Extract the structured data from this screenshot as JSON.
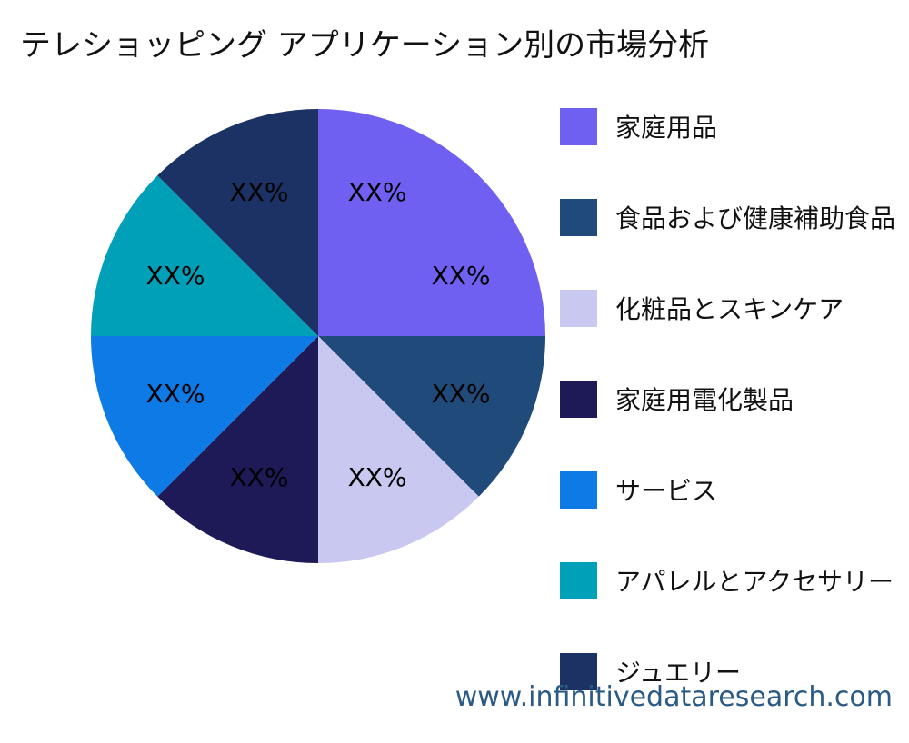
{
  "chart_data": {
    "type": "pie",
    "title": "テレショッピング アプリケーション別の市場分析",
    "slices": [
      {
        "label": "家庭用品",
        "value": 25,
        "value_label": "XX%",
        "color": "#7060f2"
      },
      {
        "label": "食品および健康補助食品",
        "value": 12.5,
        "value_label": "XX%",
        "color": "#1f4a7a"
      },
      {
        "label": "化粧品とスキンケア",
        "value": 12.5,
        "value_label": "XX%",
        "color": "#c8c8f0"
      },
      {
        "label": "家庭用電化製品",
        "value": 12.5,
        "value_label": "XX%",
        "color": "#1e1a58"
      },
      {
        "label": "サービス",
        "value": 12.5,
        "value_label": "XX%",
        "color": "#0e7ae6"
      },
      {
        "label": "アパレルとアクセサリー",
        "value": 12.5,
        "value_label": "XX%",
        "color": "#00a0b8"
      },
      {
        "label": "ジュエリー",
        "value": 12.5,
        "value_label": "XX%",
        "color": "#1c3264"
      }
    ],
    "legend_position": "right"
  },
  "watermark": "www.infinitivedataresearch.com"
}
